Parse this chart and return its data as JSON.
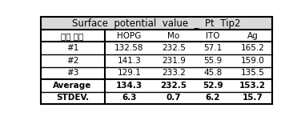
{
  "title": "Surface  potential  value  _  Pt  Tip2",
  "col_headers": [
    "측정 위치",
    "HOPG",
    "Mo",
    "ITO",
    "Ag"
  ],
  "rows": [
    [
      "#1",
      "132.58",
      "232.5",
      "57.1",
      "165.2"
    ],
    [
      "#2",
      "141.3",
      "231.9",
      "55.9",
      "159.0"
    ],
    [
      "#3",
      "129.1",
      "233.2",
      "45.8",
      "135.5"
    ],
    [
      "Average",
      "134.3",
      "232.5",
      "52.9",
      "153.2"
    ],
    [
      "STDEV.",
      "6.3",
      "0.7",
      "6.2",
      "15.7"
    ]
  ],
  "title_bg": "#d9d9d9",
  "bold_rows": [
    3,
    4
  ],
  "col_widths_rel": [
    1.3,
    1.0,
    0.8,
    0.8,
    0.8
  ],
  "title_fontsize": 8.5,
  "cell_fontsize": 7.5
}
